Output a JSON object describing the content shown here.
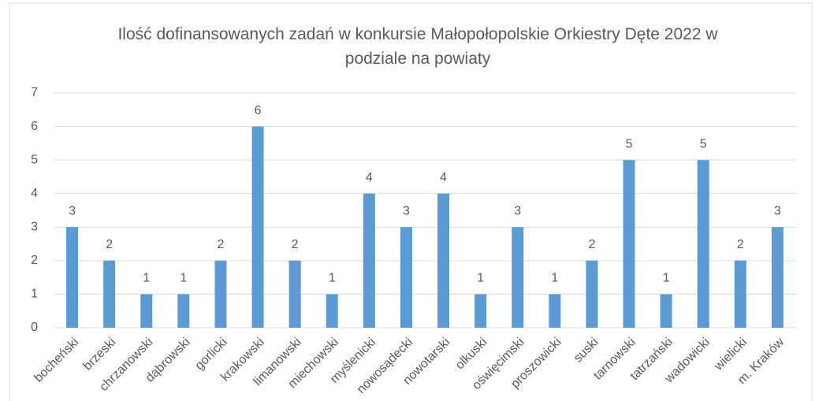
{
  "chart_data": {
    "type": "bar",
    "title": "Ilość dofinansowanych zadań w konkursie Małopołopolskie Orkiestry Dęte 2022 w podziale na powiaty",
    "categories": [
      "bocheński",
      "brzeski",
      "chrzanowski",
      "dąbrowski",
      "gorlicki",
      "krakowski",
      "limanowski",
      "miechowski",
      "myślenicki",
      "nowosądecki",
      "nowotarski",
      "olkuski",
      "oświęcimski",
      "proszowicki",
      "suski",
      "tarnowski",
      "tatrzański",
      "wadowicki",
      "wielicki",
      "m. Kraków"
    ],
    "values": [
      3,
      2,
      1,
      1,
      2,
      6,
      2,
      1,
      4,
      3,
      4,
      1,
      3,
      1,
      2,
      5,
      1,
      5,
      2,
      3
    ],
    "color": "#5b9bd5",
    "ylim": [
      0,
      7
    ],
    "yticks": [
      0,
      1,
      2,
      3,
      4,
      5,
      6,
      7
    ],
    "grid": true
  }
}
